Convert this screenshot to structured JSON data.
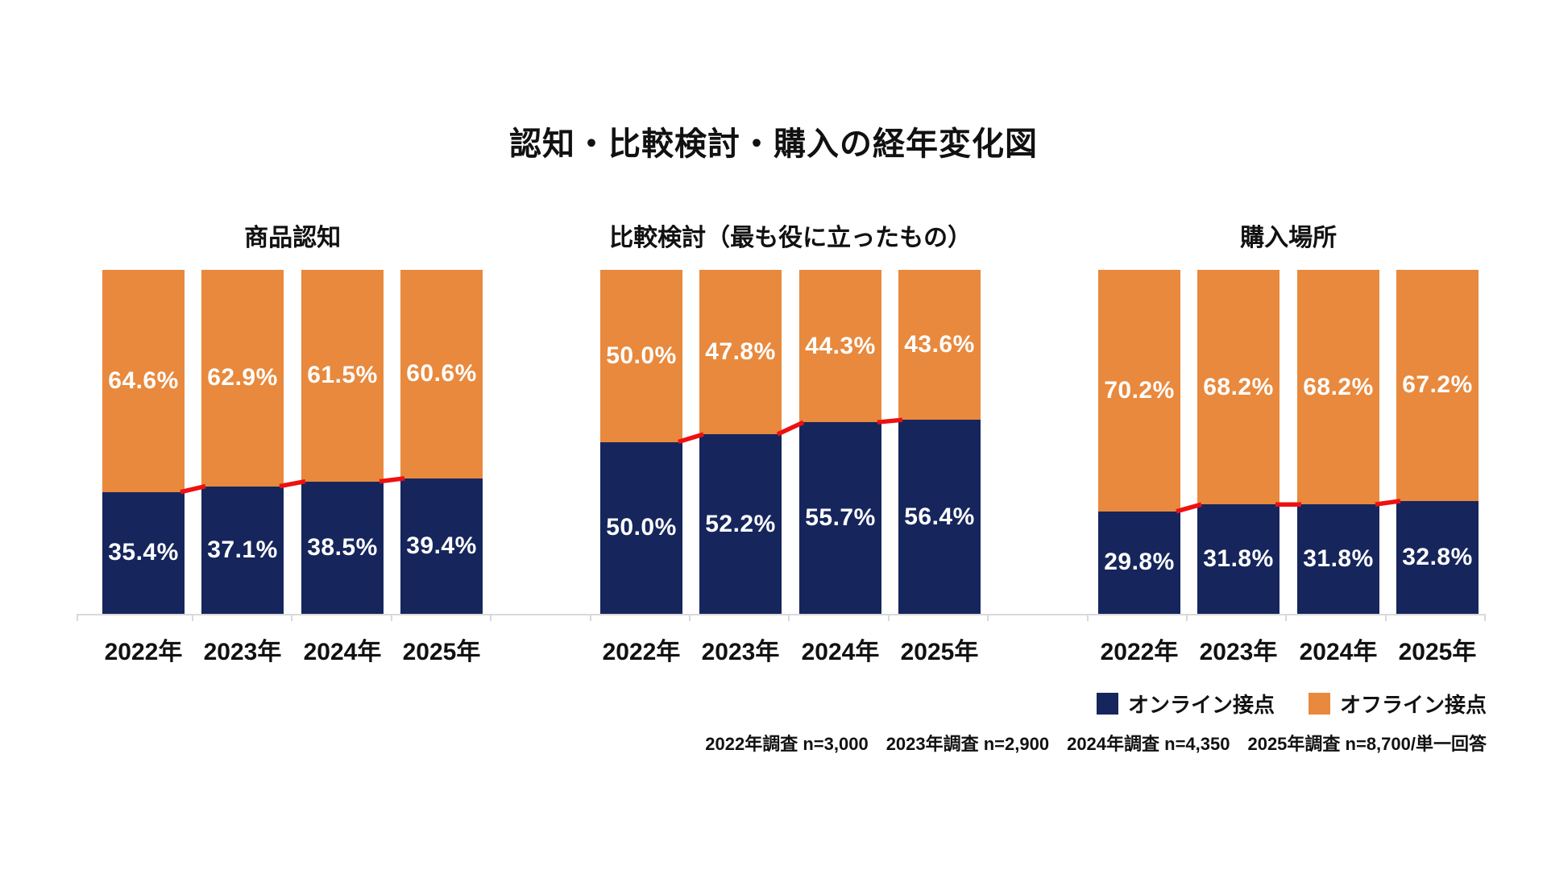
{
  "title": "認知・比較検討・購入の経年変化図",
  "legend": {
    "online": "オンライン接点",
    "offline": "オフライン接点"
  },
  "footnote": "2022年調査 n=3,000　2023年調査 n=2,900　2024年調査 n=4,350　2025年調査 n=8,700/単一回答",
  "colors": {
    "online": "#16265C",
    "offline": "#E8893D",
    "connector": "#EE1111",
    "axis": "#D9D9D9",
    "text": "#111111",
    "label_text": "#FFFFFF"
  },
  "chart_data": [
    {
      "type": "bar",
      "stacked": true,
      "title": "商品認知",
      "categories": [
        "2022年",
        "2023年",
        "2024年",
        "2025年"
      ],
      "series": [
        {
          "name": "オンライン接点",
          "values": [
            35.4,
            37.1,
            38.5,
            39.4
          ]
        },
        {
          "name": "オフライン接点",
          "values": [
            64.6,
            62.9,
            61.5,
            60.6
          ]
        }
      ],
      "ylim": [
        0,
        100
      ],
      "value_suffix": "%",
      "grid": false,
      "annotations": "red connector lines join the online/offline boundary between adjacent bars"
    },
    {
      "type": "bar",
      "stacked": true,
      "title": "比較検討（最も役に立ったもの）",
      "categories": [
        "2022年",
        "2023年",
        "2024年",
        "2025年"
      ],
      "series": [
        {
          "name": "オンライン接点",
          "values": [
            50.0,
            52.2,
            55.7,
            56.4
          ]
        },
        {
          "name": "オフライン接点",
          "values": [
            50.0,
            47.8,
            44.3,
            43.6
          ]
        }
      ],
      "ylim": [
        0,
        100
      ],
      "value_suffix": "%",
      "grid": false,
      "annotations": "red connector lines join the online/offline boundary between adjacent bars"
    },
    {
      "type": "bar",
      "stacked": true,
      "title": "購入場所",
      "categories": [
        "2022年",
        "2023年",
        "2024年",
        "2025年"
      ],
      "series": [
        {
          "name": "オンライン接点",
          "values": [
            29.8,
            31.8,
            31.8,
            32.8
          ]
        },
        {
          "name": "オフライン接点",
          "values": [
            70.2,
            68.2,
            68.2,
            67.2
          ]
        }
      ],
      "ylim": [
        0,
        100
      ],
      "value_suffix": "%",
      "grid": false,
      "annotations": "red connector lines join the online/offline boundary between adjacent bars"
    }
  ]
}
